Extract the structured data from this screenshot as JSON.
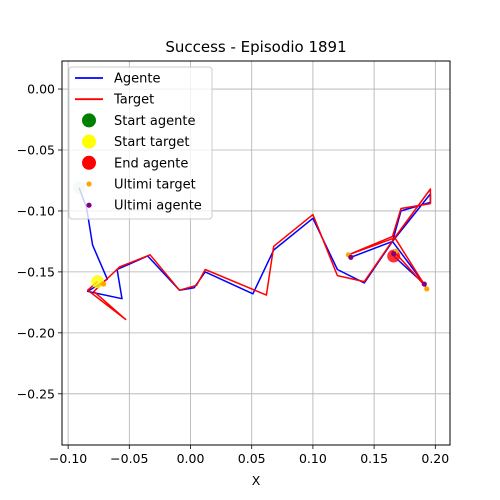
{
  "chart_data": {
    "type": "line",
    "title": "Success - Episodio 1891",
    "xlabel": "X",
    "ylabel": "",
    "xlim": [
      -0.105,
      0.212
    ],
    "ylim": [
      -0.292,
      0.023
    ],
    "xticks": [
      -0.1,
      -0.05,
      0.0,
      0.05,
      0.1,
      0.15,
      0.2
    ],
    "xtick_labels": [
      "−0.10",
      "−0.05",
      "0.00",
      "0.05",
      "0.10",
      "0.15",
      "0.20"
    ],
    "yticks": [
      0.0,
      -0.05,
      -0.1,
      -0.15,
      -0.2,
      -0.25
    ],
    "ytick_labels": [
      "0.00",
      "−0.05",
      "−0.10",
      "−0.15",
      "−0.20",
      "−0.25"
    ],
    "grid": true,
    "legend_position": "top-left",
    "series": [
      {
        "name": "Agente",
        "kind": "line",
        "color": "#0000ff",
        "points": [
          [
            -0.091,
            -0.081
          ],
          [
            -0.085,
            -0.097
          ],
          [
            -0.08,
            -0.128
          ],
          [
            -0.068,
            -0.156
          ],
          [
            -0.084,
            -0.166
          ],
          [
            -0.056,
            -0.172
          ],
          [
            -0.06,
            -0.148
          ],
          [
            -0.035,
            -0.137
          ],
          [
            -0.009,
            -0.165
          ],
          [
            0.003,
            -0.163
          ],
          [
            0.012,
            -0.15
          ],
          [
            0.051,
            -0.168
          ],
          [
            0.068,
            -0.132
          ],
          [
            0.1,
            -0.106
          ],
          [
            0.12,
            -0.148
          ],
          [
            0.142,
            -0.159
          ],
          [
            0.165,
            -0.125
          ],
          [
            0.196,
            -0.086
          ],
          [
            0.196,
            -0.093
          ],
          [
            0.172,
            -0.1
          ],
          [
            0.165,
            -0.125
          ],
          [
            0.131,
            -0.138
          ],
          [
            0.165,
            -0.125
          ],
          [
            0.191,
            -0.16
          ],
          [
            0.166,
            -0.137
          ]
        ]
      },
      {
        "name": "Target",
        "kind": "line",
        "color": "#ff0000",
        "points": [
          [
            -0.076,
            -0.158
          ],
          [
            -0.084,
            -0.165
          ],
          [
            -0.053,
            -0.189
          ],
          [
            -0.079,
            -0.166
          ],
          [
            -0.058,
            -0.146
          ],
          [
            -0.033,
            -0.136
          ],
          [
            -0.009,
            -0.165
          ],
          [
            0.005,
            -0.161
          ],
          [
            0.012,
            -0.148
          ],
          [
            0.062,
            -0.169
          ],
          [
            0.068,
            -0.129
          ],
          [
            0.1,
            -0.103
          ],
          [
            0.12,
            -0.153
          ],
          [
            0.142,
            -0.158
          ],
          [
            0.166,
            -0.123
          ],
          [
            0.196,
            -0.082
          ],
          [
            0.196,
            -0.094
          ],
          [
            0.172,
            -0.098
          ],
          [
            0.165,
            -0.121
          ],
          [
            0.129,
            -0.136
          ],
          [
            0.167,
            -0.122
          ],
          [
            0.192,
            -0.162
          ],
          [
            0.168,
            -0.135
          ]
        ]
      },
      {
        "name": "Start agente",
        "kind": "marker",
        "color": "#008000",
        "points": [
          [
            -0.091,
            -0.081
          ]
        ]
      },
      {
        "name": "Start target",
        "kind": "marker",
        "color": "#ffff00",
        "points": [
          [
            -0.076,
            -0.158
          ]
        ]
      },
      {
        "name": "End agente",
        "kind": "marker",
        "color": "#ff0000",
        "points": [
          [
            0.166,
            -0.137
          ]
        ]
      },
      {
        "name": "Ultimi target",
        "kind": "dots",
        "color": "#ffa500",
        "points": [
          [
            -0.071,
            -0.16
          ],
          [
            0.129,
            -0.136
          ],
          [
            0.193,
            -0.164
          ],
          [
            0.168,
            -0.133
          ]
        ]
      },
      {
        "name": "Ultimi agente",
        "kind": "dots",
        "color": "#800080",
        "points": [
          [
            0.131,
            -0.138
          ],
          [
            0.191,
            -0.16
          ],
          [
            0.166,
            -0.135
          ]
        ]
      }
    ]
  }
}
